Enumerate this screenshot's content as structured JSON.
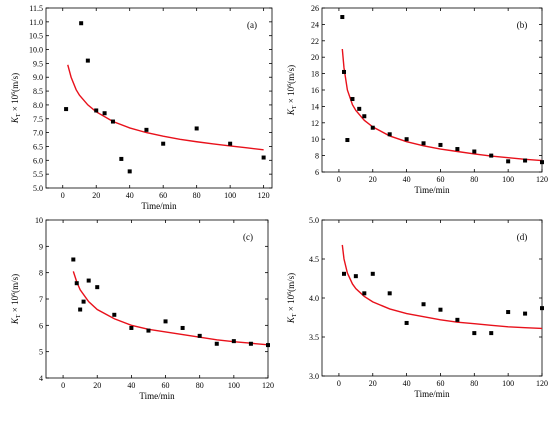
{
  "chart_data": [
    {
      "type": "scatter",
      "panel_label": "(a)",
      "xlabel": "Time/min",
      "ylabel_main": "K",
      "ylabel_sub": "T",
      "ylabel_rest": " × 10",
      "ylabel_sup": "6",
      "ylabel_unit": "(m/s)",
      "xlim": [
        -10,
        125
      ],
      "ylim": [
        5.0,
        11.5
      ],
      "xticks": [
        0,
        20,
        40,
        60,
        80,
        100,
        120
      ],
      "yticks": [
        5.0,
        5.5,
        6.0,
        6.5,
        7.0,
        7.5,
        8.0,
        8.5,
        9.0,
        9.5,
        10.0,
        10.5,
        11.0,
        11.5
      ],
      "ytick_decimals": 1,
      "x_tick_labels": [
        "0",
        "20",
        "40",
        "60",
        "80",
        "100",
        "120"
      ],
      "y_tick_labels": [
        "5.0",
        "5.5",
        "6.0",
        "6.5",
        "7.0",
        "7.5",
        "8.0",
        "8.5",
        "9.0",
        "9.5",
        "10.0",
        "10.5",
        "11.0",
        "11.5"
      ],
      "points": {
        "x": [
          2,
          11,
          15,
          20,
          25,
          30,
          35,
          40,
          50,
          60,
          80,
          100,
          120
        ],
        "y": [
          7.85,
          10.95,
          9.6,
          7.8,
          7.7,
          7.4,
          6.05,
          5.6,
          7.1,
          6.6,
          7.15,
          6.6,
          6.1
        ]
      },
      "fit": {
        "x": [
          3,
          5,
          8,
          10,
          15,
          20,
          30,
          40,
          50,
          60,
          70,
          80,
          90,
          100,
          110,
          120
        ],
        "y": [
          9.45,
          9.0,
          8.55,
          8.35,
          8.0,
          7.75,
          7.4,
          7.17,
          7.0,
          6.87,
          6.76,
          6.67,
          6.59,
          6.52,
          6.45,
          6.38
        ]
      },
      "colors": {
        "markers": "#000000",
        "fit": "#e8111b"
      }
    },
    {
      "type": "scatter",
      "panel_label": "(b)",
      "xlabel": "Time/min",
      "ylabel_main": "K",
      "ylabel_sub": "T",
      "ylabel_rest": " × 10",
      "ylabel_sup": "6",
      "ylabel_unit": "(m/s)",
      "xlim": [
        -10,
        120
      ],
      "ylim": [
        6,
        26
      ],
      "xticks": [
        0,
        20,
        40,
        60,
        80,
        100,
        120
      ],
      "yticks": [
        6,
        8,
        10,
        12,
        14,
        16,
        18,
        20,
        22,
        24,
        26
      ],
      "ytick_decimals": 0,
      "x_tick_labels": [
        "0",
        "20",
        "40",
        "60",
        "80",
        "100",
        "120"
      ],
      "y_tick_labels": [
        "6",
        "8",
        "10",
        "12",
        "14",
        "16",
        "18",
        "20",
        "22",
        "24",
        "26"
      ],
      "points": {
        "x": [
          2,
          3,
          5,
          8,
          12,
          15,
          20,
          30,
          40,
          50,
          60,
          70,
          80,
          90,
          100,
          110,
          120
        ],
        "y": [
          24.9,
          18.2,
          9.9,
          14.9,
          13.7,
          12.8,
          11.4,
          10.6,
          10.0,
          9.5,
          9.3,
          8.8,
          8.5,
          8.0,
          7.3,
          7.4,
          7.2
        ]
      },
      "fit": {
        "x": [
          2,
          3,
          5,
          8,
          10,
          15,
          20,
          30,
          40,
          50,
          60,
          70,
          80,
          90,
          100,
          110,
          120
        ],
        "y": [
          21.0,
          18.7,
          16.0,
          14.2,
          13.5,
          12.3,
          11.5,
          10.4,
          9.7,
          9.2,
          8.8,
          8.5,
          8.2,
          7.95,
          7.75,
          7.55,
          7.4
        ]
      },
      "colors": {
        "markers": "#000000",
        "fit": "#e8111b"
      }
    },
    {
      "type": "scatter",
      "panel_label": "(c)",
      "xlabel": "Time/min",
      "ylabel_main": "K",
      "ylabel_sub": "T",
      "ylabel_rest": " × 10",
      "ylabel_sup": "6",
      "ylabel_unit": "(m/s)",
      "xlim": [
        -10,
        120
      ],
      "ylim": [
        4,
        10
      ],
      "xticks": [
        0,
        20,
        40,
        60,
        80,
        100,
        120
      ],
      "yticks": [
        4,
        5,
        6,
        7,
        8,
        9,
        10
      ],
      "ytick_decimals": 0,
      "x_tick_labels": [
        "0",
        "20",
        "40",
        "60",
        "80",
        "100",
        "120"
      ],
      "y_tick_labels": [
        "4",
        "5",
        "6",
        "7",
        "8",
        "9",
        "10"
      ],
      "points": {
        "x": [
          6,
          8,
          10,
          12,
          15,
          20,
          30,
          40,
          50,
          60,
          70,
          80,
          90,
          100,
          110,
          120
        ],
        "y": [
          8.5,
          7.6,
          6.6,
          6.9,
          7.7,
          7.45,
          6.4,
          5.9,
          5.8,
          6.15,
          5.9,
          5.6,
          5.3,
          5.4,
          5.3,
          5.25
        ]
      },
      "fit": {
        "x": [
          6,
          8,
          10,
          15,
          20,
          30,
          40,
          50,
          60,
          70,
          80,
          90,
          100,
          110,
          120
        ],
        "y": [
          8.05,
          7.65,
          7.35,
          6.9,
          6.6,
          6.25,
          6.0,
          5.85,
          5.75,
          5.65,
          5.55,
          5.45,
          5.38,
          5.32,
          5.26
        ]
      },
      "colors": {
        "markers": "#000000",
        "fit": "#e8111b"
      }
    },
    {
      "type": "scatter",
      "panel_label": "(d)",
      "xlabel": "Time/min",
      "ylabel_main": "K",
      "ylabel_sub": "T",
      "ylabel_rest": " × 10",
      "ylabel_sup": "6",
      "ylabel_unit": "(m/s)",
      "xlim": [
        -10,
        120
      ],
      "ylim": [
        3.0,
        5.0
      ],
      "xticks": [
        0,
        20,
        40,
        60,
        80,
        100,
        120
      ],
      "yticks": [
        3.0,
        3.5,
        4.0,
        4.5,
        5.0
      ],
      "ytick_decimals": 1,
      "x_tick_labels": [
        "0",
        "20",
        "40",
        "60",
        "80",
        "100",
        "120"
      ],
      "y_tick_labels": [
        "3.0",
        "3.5",
        "4.0",
        "4.5",
        "5.0"
      ],
      "points": {
        "x": [
          3,
          10,
          15,
          20,
          30,
          40,
          50,
          60,
          70,
          80,
          90,
          100,
          110,
          120
        ],
        "y": [
          4.31,
          4.28,
          4.06,
          4.31,
          4.06,
          3.68,
          3.92,
          3.85,
          3.72,
          3.55,
          3.55,
          3.82,
          3.8,
          3.87
        ]
      },
      "fit": {
        "x": [
          2,
          3,
          5,
          8,
          10,
          15,
          20,
          30,
          40,
          50,
          60,
          70,
          80,
          90,
          100,
          110,
          120
        ],
        "y": [
          4.68,
          4.5,
          4.32,
          4.18,
          4.12,
          4.02,
          3.95,
          3.86,
          3.8,
          3.76,
          3.72,
          3.69,
          3.67,
          3.65,
          3.63,
          3.62,
          3.61
        ]
      },
      "colors": {
        "markers": "#000000",
        "fit": "#e8111b"
      }
    }
  ]
}
